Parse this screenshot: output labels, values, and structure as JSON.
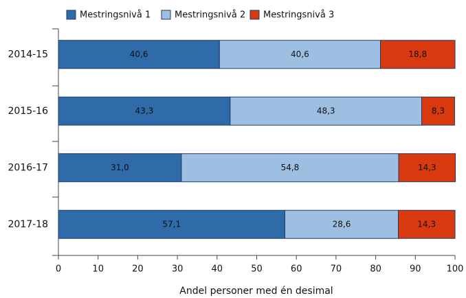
{
  "chart_data": {
    "type": "stacked-bar-horizontal",
    "categories": [
      "2014-15",
      "2015-16",
      "2016-17",
      "2017-18"
    ],
    "series": [
      {
        "name": "Mestringsnivå 1",
        "color": "#2f6aa9",
        "values": [
          40.6,
          43.3,
          31.0,
          57.1
        ],
        "value_labels": [
          "40,6",
          "43,3",
          "31,0",
          "57,1"
        ]
      },
      {
        "name": "Mestringsnivå 2",
        "color": "#9dbfe2",
        "values": [
          40.6,
          48.3,
          54.8,
          28.6
        ],
        "value_labels": [
          "40,6",
          "48,3",
          "54,8",
          "28,6"
        ]
      },
      {
        "name": "Mestringsnivå 3",
        "color": "#d9390f",
        "values": [
          18.8,
          8.3,
          14.3,
          14.3
        ],
        "value_labels": [
          "18,8",
          "8,3",
          "14,3",
          "14,3"
        ]
      }
    ],
    "xlabel": "Andel personer med én desimal",
    "xlim": [
      0,
      100
    ],
    "xticks": [
      0,
      10,
      20,
      30,
      40,
      50,
      60,
      70,
      80,
      90,
      100
    ],
    "legend": "top"
  }
}
